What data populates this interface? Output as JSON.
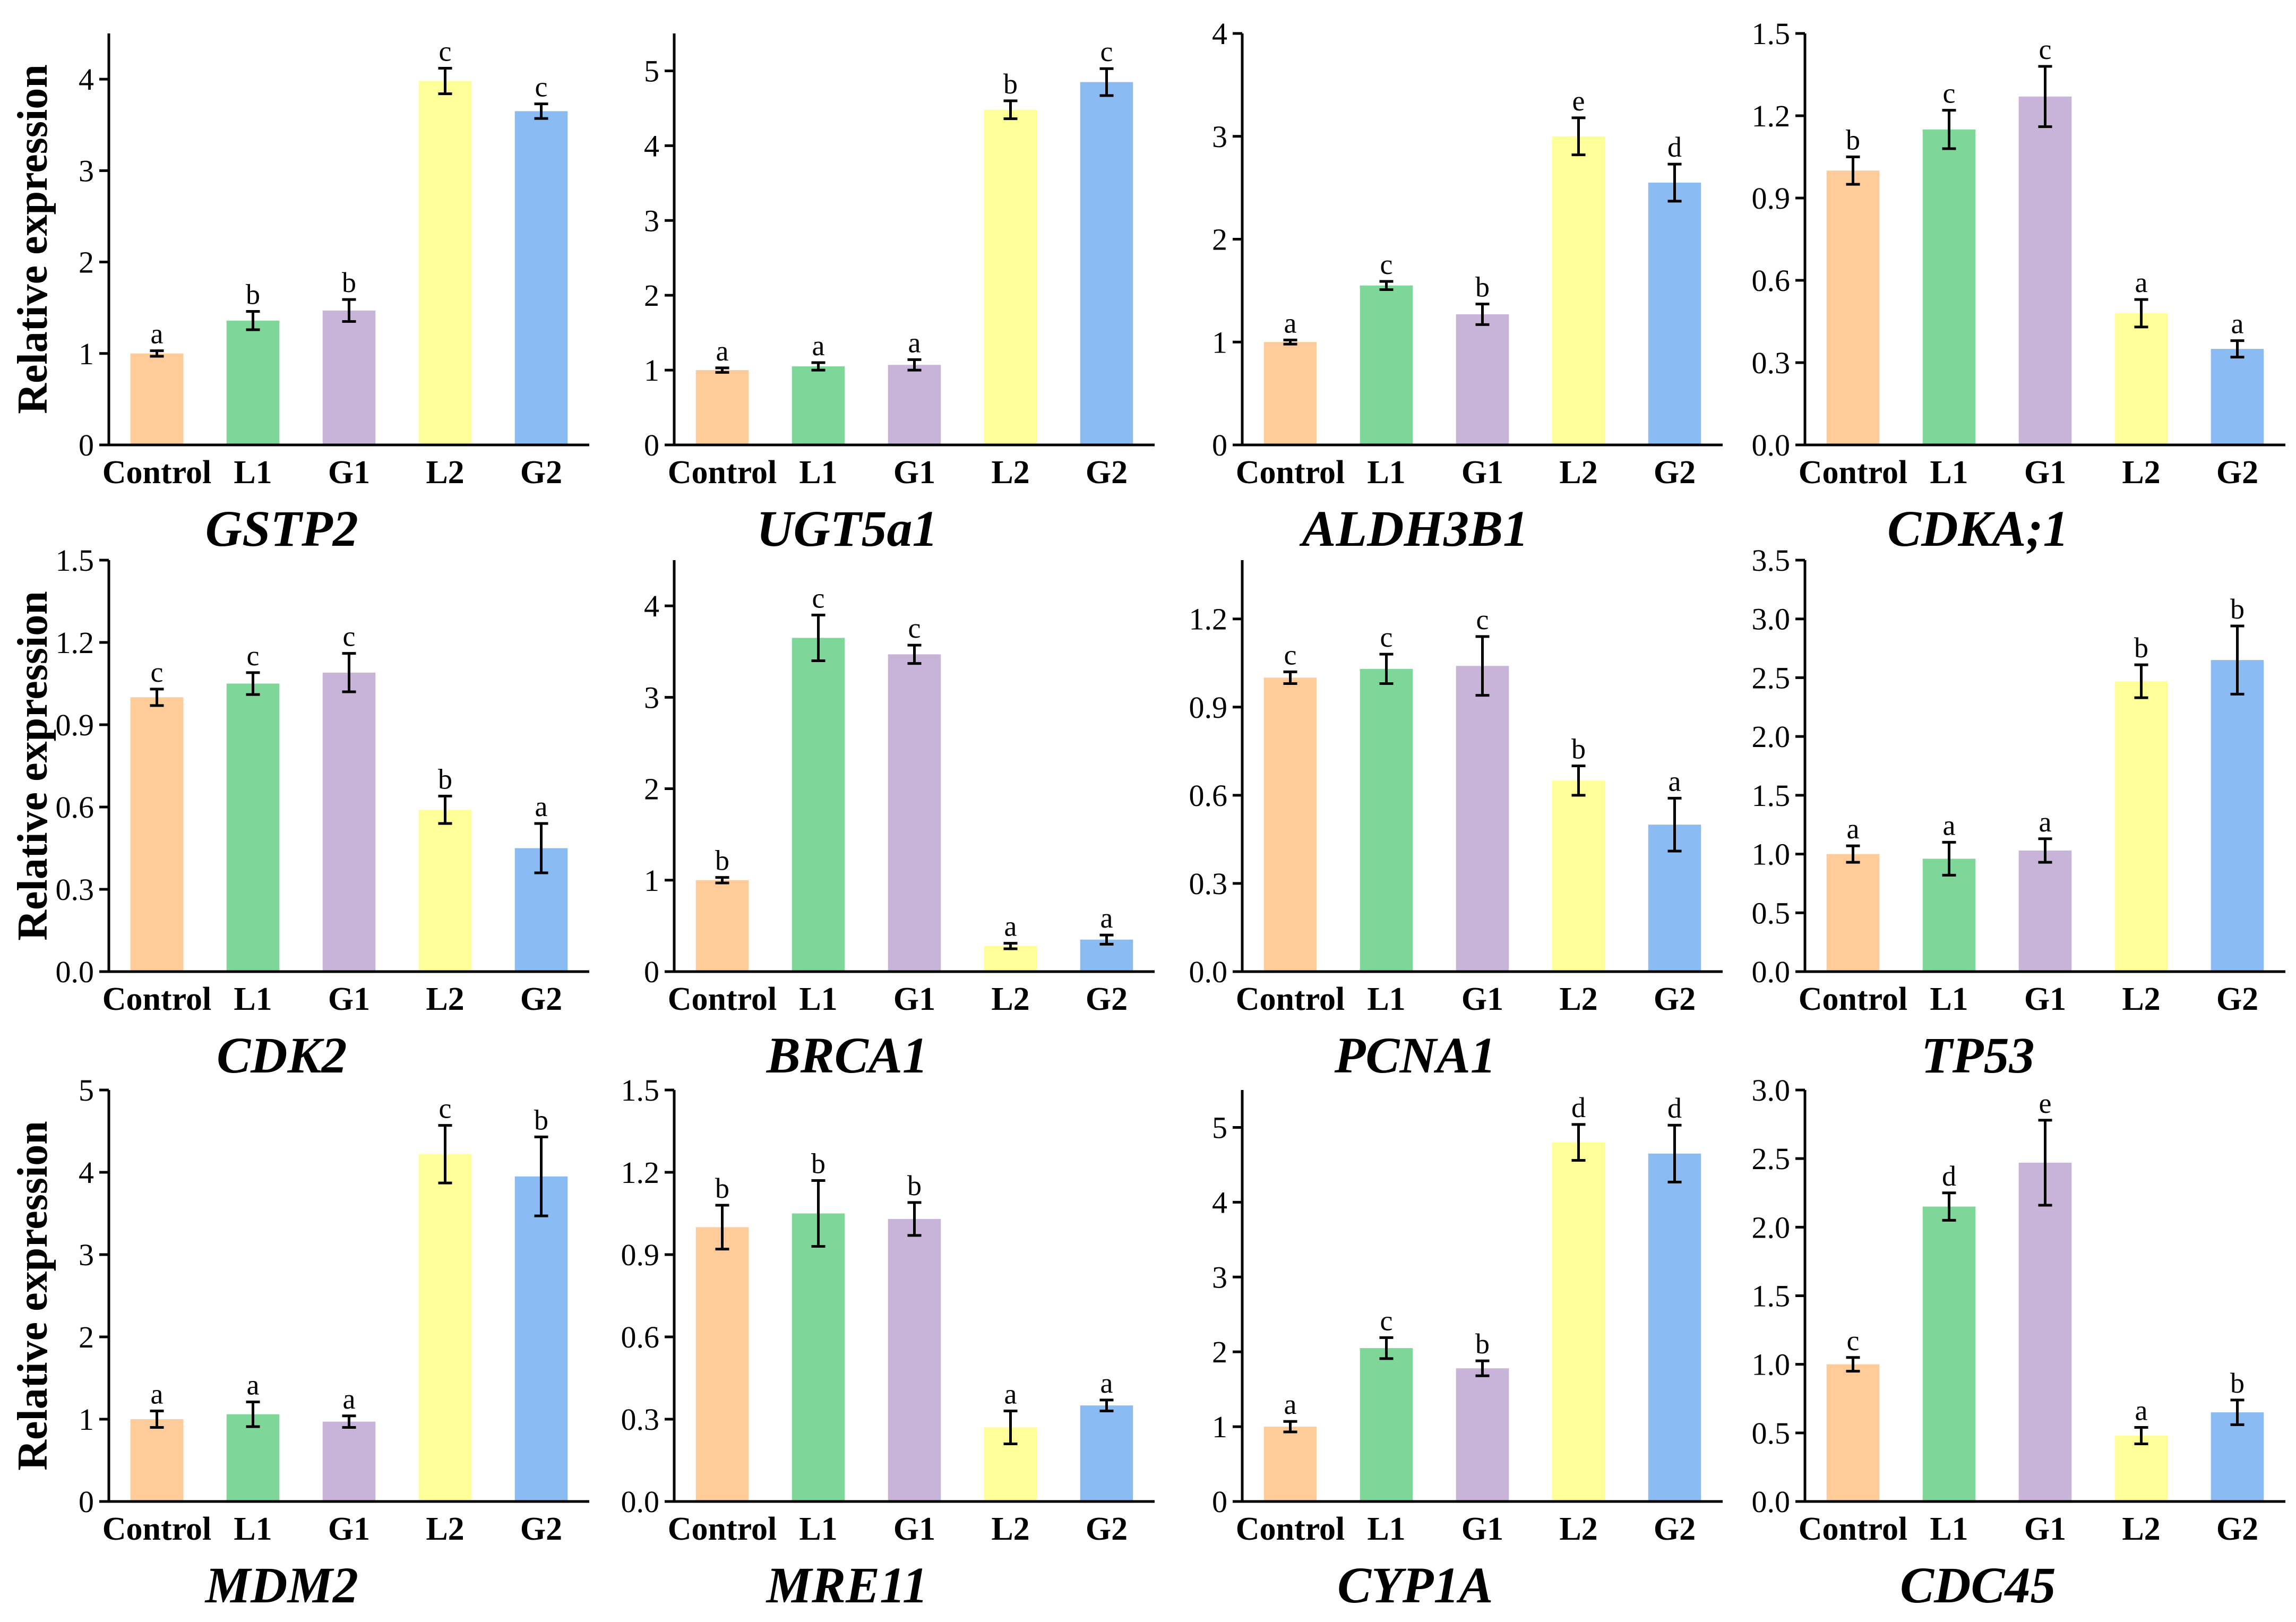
{
  "figure": {
    "ylabel": "Relative expression",
    "categories": [
      "Control",
      "L1",
      "G1",
      "L2",
      "G2"
    ],
    "bar_colors": [
      "#FFCC99",
      "#7ED698",
      "#C9B4D9",
      "#FFFF99",
      "#8ABBF2"
    ]
  },
  "chart_data": [
    {
      "type": "bar",
      "title": "GSTP2",
      "categories": [
        "Control",
        "L1",
        "G1",
        "L2",
        "G2"
      ],
      "values": [
        1.0,
        1.36,
        1.47,
        3.98,
        3.65
      ],
      "errors": [
        0.03,
        0.1,
        0.12,
        0.14,
        0.08
      ],
      "letters": [
        "a",
        "b",
        "b",
        "c",
        "c"
      ],
      "ylim": [
        0,
        4.5
      ],
      "yticks": [
        0,
        1,
        2,
        3,
        4
      ],
      "tick_labels": [
        "0",
        "1",
        "2",
        "3",
        "4"
      ],
      "ylabel": "Relative expression",
      "xlabel": ""
    },
    {
      "type": "bar",
      "title": "UGT5a1",
      "categories": [
        "Control",
        "L1",
        "G1",
        "L2",
        "G2"
      ],
      "values": [
        1.0,
        1.05,
        1.07,
        4.48,
        4.85
      ],
      "errors": [
        0.03,
        0.05,
        0.07,
        0.12,
        0.18
      ],
      "letters": [
        "a",
        "a",
        "a",
        "b",
        "c"
      ],
      "ylim": [
        0,
        5.5
      ],
      "yticks": [
        0,
        1,
        2,
        3,
        4,
        5
      ],
      "tick_labels": [
        "0",
        "1",
        "2",
        "3",
        "4",
        "5"
      ],
      "ylabel": "",
      "xlabel": ""
    },
    {
      "type": "bar",
      "title": "ALDH3B1",
      "categories": [
        "Control",
        "L1",
        "G1",
        "L2",
        "G2"
      ],
      "values": [
        1.0,
        1.55,
        1.27,
        3.0,
        2.55
      ],
      "errors": [
        0.02,
        0.04,
        0.1,
        0.18,
        0.18
      ],
      "letters": [
        "a",
        "c",
        "b",
        "e",
        "d"
      ],
      "ylim": [
        0,
        4
      ],
      "yticks": [
        0,
        1,
        2,
        3,
        4
      ],
      "tick_labels": [
        "0",
        "1",
        "2",
        "3",
        "4"
      ],
      "ylabel": "",
      "xlabel": ""
    },
    {
      "type": "bar",
      "title": "CDKA;1",
      "categories": [
        "Control",
        "L1",
        "G1",
        "L2",
        "G2"
      ],
      "values": [
        1.0,
        1.15,
        1.27,
        0.48,
        0.35
      ],
      "errors": [
        0.05,
        0.07,
        0.11,
        0.05,
        0.03
      ],
      "letters": [
        "b",
        "c",
        "c",
        "a",
        "a"
      ],
      "ylim": [
        0,
        1.5
      ],
      "yticks": [
        0,
        0.3,
        0.6,
        0.9,
        1.2,
        1.5
      ],
      "tick_labels": [
        "0.0",
        "0.3",
        "0.6",
        "0.9",
        "1.2",
        "1.5"
      ],
      "ylabel": "",
      "xlabel": ""
    },
    {
      "type": "bar",
      "title": "CDK2",
      "categories": [
        "Control",
        "L1",
        "G1",
        "L2",
        "G2"
      ],
      "values": [
        1.0,
        1.05,
        1.09,
        0.59,
        0.45
      ],
      "errors": [
        0.03,
        0.04,
        0.07,
        0.05,
        0.09
      ],
      "letters": [
        "c",
        "c",
        "c",
        "b",
        "a"
      ],
      "ylim": [
        0,
        1.5
      ],
      "yticks": [
        0,
        0.3,
        0.6,
        0.9,
        1.2,
        1.5
      ],
      "tick_labels": [
        "0.0",
        "0.3",
        "0.6",
        "0.9",
        "1.2",
        "1.5"
      ],
      "ylabel": "Relative expression",
      "xlabel": ""
    },
    {
      "type": "bar",
      "title": "BRCA1",
      "categories": [
        "Control",
        "L1",
        "G1",
        "L2",
        "G2"
      ],
      "values": [
        1.0,
        3.65,
        3.47,
        0.28,
        0.35
      ],
      "errors": [
        0.03,
        0.25,
        0.1,
        0.03,
        0.05
      ],
      "letters": [
        "b",
        "c",
        "c",
        "a",
        "a"
      ],
      "ylim": [
        0,
        4.5
      ],
      "yticks": [
        0,
        1,
        2,
        3,
        4
      ],
      "tick_labels": [
        "0",
        "1",
        "2",
        "3",
        "4"
      ],
      "ylabel": "",
      "xlabel": ""
    },
    {
      "type": "bar",
      "title": "PCNA1",
      "categories": [
        "Control",
        "L1",
        "G1",
        "L2",
        "G2"
      ],
      "values": [
        1.0,
        1.03,
        1.04,
        0.65,
        0.5
      ],
      "errors": [
        0.02,
        0.05,
        0.1,
        0.05,
        0.09
      ],
      "letters": [
        "c",
        "c",
        "c",
        "b",
        "a"
      ],
      "ylim": [
        0,
        1.4
      ],
      "yticks": [
        0,
        0.3,
        0.6,
        0.9,
        1.2
      ],
      "tick_labels": [
        "0.0",
        "0.3",
        "0.6",
        "0.9",
        "1.2"
      ],
      "ylabel": "",
      "xlabel": ""
    },
    {
      "type": "bar",
      "title": "TP53",
      "categories": [
        "Control",
        "L1",
        "G1",
        "L2",
        "G2"
      ],
      "values": [
        1.0,
        0.96,
        1.03,
        2.47,
        2.65
      ],
      "errors": [
        0.07,
        0.14,
        0.1,
        0.14,
        0.29
      ],
      "letters": [
        "a",
        "a",
        "a",
        "b",
        "b"
      ],
      "ylim": [
        0,
        3.5
      ],
      "yticks": [
        0,
        0.5,
        1,
        1.5,
        2,
        2.5,
        3,
        3.5
      ],
      "tick_labels": [
        "0.0",
        "0.5",
        "1.0",
        "1.5",
        "2.0",
        "2.5",
        "3.0",
        "3.5"
      ],
      "ylabel": "",
      "xlabel": ""
    },
    {
      "type": "bar",
      "title": "MDM2",
      "categories": [
        "Control",
        "L1",
        "G1",
        "L2",
        "G2"
      ],
      "values": [
        1.0,
        1.06,
        0.97,
        4.22,
        3.95
      ],
      "errors": [
        0.1,
        0.15,
        0.07,
        0.35,
        0.48
      ],
      "letters": [
        "a",
        "a",
        "a",
        "c",
        "b"
      ],
      "ylim": [
        0,
        5
      ],
      "yticks": [
        0,
        1,
        2,
        3,
        4,
        5
      ],
      "tick_labels": [
        "0",
        "1",
        "2",
        "3",
        "4",
        "5"
      ],
      "ylabel": "Relative expression",
      "xlabel": ""
    },
    {
      "type": "bar",
      "title": "MRE11",
      "categories": [
        "Control",
        "L1",
        "G1",
        "L2",
        "G2"
      ],
      "values": [
        1.0,
        1.05,
        1.03,
        0.27,
        0.35
      ],
      "errors": [
        0.08,
        0.12,
        0.06,
        0.06,
        0.02
      ],
      "letters": [
        "b",
        "b",
        "b",
        "a",
        "a"
      ],
      "ylim": [
        0,
        1.5
      ],
      "yticks": [
        0,
        0.3,
        0.6,
        0.9,
        1.2,
        1.5
      ],
      "tick_labels": [
        "0.0",
        "0.3",
        "0.6",
        "0.9",
        "1.2",
        "1.5"
      ],
      "ylabel": "",
      "xlabel": ""
    },
    {
      "type": "bar",
      "title": "CYP1A",
      "categories": [
        "Control",
        "L1",
        "G1",
        "L2",
        "G2"
      ],
      "values": [
        1.0,
        2.05,
        1.78,
        4.8,
        4.65
      ],
      "errors": [
        0.07,
        0.14,
        0.1,
        0.24,
        0.38
      ],
      "letters": [
        "a",
        "c",
        "b",
        "d",
        "d"
      ],
      "ylim": [
        0,
        5.5
      ],
      "yticks": [
        0,
        1,
        2,
        3,
        4,
        5
      ],
      "tick_labels": [
        "0",
        "1",
        "2",
        "3",
        "4",
        "5"
      ],
      "ylabel": "",
      "xlabel": ""
    },
    {
      "type": "bar",
      "title": "CDC45",
      "categories": [
        "Control",
        "L1",
        "G1",
        "L2",
        "G2"
      ],
      "values": [
        1.0,
        2.15,
        2.47,
        0.48,
        0.65
      ],
      "errors": [
        0.05,
        0.1,
        0.31,
        0.06,
        0.09
      ],
      "letters": [
        "c",
        "d",
        "e",
        "a",
        "b"
      ],
      "ylim": [
        0,
        3
      ],
      "yticks": [
        0,
        0.5,
        1,
        1.5,
        2,
        2.5,
        3
      ],
      "tick_labels": [
        "0.0",
        "0.5",
        "1.0",
        "1.5",
        "2.0",
        "2.5",
        "3.0"
      ],
      "ylabel": "",
      "xlabel": ""
    }
  ]
}
